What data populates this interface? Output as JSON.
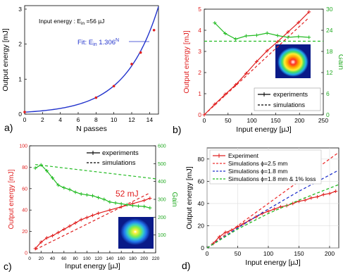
{
  "chart_data": [
    {
      "panel": "a)",
      "type": "scatter",
      "annotation": "Input energy : E",
      "annotation_sub": "in",
      "annotation_tail": " =56 µJ",
      "fit_label": "Fit: E",
      "fit_sub": "in",
      "fit_tail": " 1.306",
      "fit_sup": "N",
      "xlabel": "N passes",
      "ylabel": "Output energy [mJ]",
      "xlim": [
        0,
        15
      ],
      "ylim": [
        0,
        3.1
      ],
      "xticks": [
        0,
        2,
        4,
        6,
        8,
        10,
        12,
        14
      ],
      "yticks": [
        0,
        1,
        2,
        3
      ],
      "series": [
        {
          "values_x": [
            0,
            8,
            10,
            12,
            13,
            14.5
          ],
          "values_y": [
            0.06,
            0.47,
            0.8,
            1.43,
            1.76,
            2.4
          ],
          "color": "#e02020"
        }
      ],
      "fit_curve": {
        "type": "exponential",
        "a": 0.056,
        "b": 1.306,
        "color": "#2233cc"
      }
    },
    {
      "panel": "b)",
      "type": "line",
      "xlabel": "Input energy [µJ]",
      "ylabel": "Output energy [mJ]",
      "y2label": "Gain",
      "xlim": [
        0,
        250
      ],
      "ylim": [
        0,
        5
      ],
      "y2lim": [
        0,
        30
      ],
      "xticks": [
        0,
        50,
        100,
        150,
        200,
        250
      ],
      "yticks": [
        0,
        1,
        2,
        3,
        4,
        5
      ],
      "y2ticks": [
        0,
        6,
        12,
        18,
        24,
        30
      ],
      "legend": [
        "experiments",
        "simulations"
      ],
      "legend_position": "bottom-right",
      "series": [
        {
          "x": [
            0,
            22,
            44,
            66,
            88,
            110,
            132,
            154,
            176,
            198,
            220
          ],
          "y": [
            0,
            0.5,
            0.97,
            1.42,
            1.96,
            2.52,
            3.03,
            3.46,
            3.92,
            4.37,
            4.87
          ],
          "color": "#e02020",
          "axis": "left"
        },
        {
          "x": [
            0,
            220
          ],
          "y": [
            0,
            4.6
          ],
          "color": "#e02020",
          "dashed": true,
          "axis": "left"
        },
        {
          "x": [
            22,
            44,
            66,
            88,
            110,
            132,
            154,
            176,
            198,
            220
          ],
          "y": [
            26.1,
            23.1,
            21.5,
            22.4,
            22.6,
            23.2,
            22.5,
            22.0,
            22.2,
            22.0
          ],
          "color": "#22bb22",
          "axis": "right"
        },
        {
          "x": [
            0,
            250
          ],
          "y": [
            20.9,
            20.9
          ],
          "color": "#22bb22",
          "dashed": true,
          "axis": "right"
        }
      ]
    },
    {
      "panel": "c)",
      "type": "line",
      "xlabel": "Input energy [µJ]",
      "ylabel": "Output energy [mJ]",
      "y2label": "Gain",
      "annotation": "52 mJ",
      "xlim": [
        0,
        220
      ],
      "ylim": [
        0,
        100
      ],
      "y2lim": [
        0,
        600
      ],
      "xticks": [
        0,
        20,
        40,
        60,
        80,
        100,
        120,
        140,
        160,
        180,
        200,
        220
      ],
      "yticks": [
        0,
        20,
        40,
        60,
        80,
        100
      ],
      "y2ticks": [
        100,
        200,
        300,
        400,
        500,
        600
      ],
      "legend": [
        "experiments",
        "simulations"
      ],
      "legend_position": "top-right",
      "series": [
        {
          "x": [
            10,
            20,
            30,
            40,
            50,
            60,
            70,
            80,
            90,
            100,
            110,
            120,
            140,
            160,
            180,
            200,
            210
          ],
          "y": [
            4,
            10,
            14,
            16,
            19,
            22,
            25,
            28,
            31,
            33,
            35,
            37,
            40,
            43,
            46,
            49,
            51
          ],
          "color": "#e02020",
          "axis": "left"
        },
        {
          "x": [
            10,
            210
          ],
          "y": [
            3,
            56
          ],
          "color": "#e02020",
          "dashed": true,
          "axis": "left"
        },
        {
          "x": [
            10,
            20,
            30,
            40,
            50,
            60,
            70,
            80,
            90,
            100,
            110,
            120,
            130,
            140,
            150,
            160,
            170,
            180,
            190,
            200,
            210
          ],
          "y": [
            475,
            493,
            460,
            420,
            380,
            365,
            355,
            340,
            330,
            325,
            320,
            310,
            300,
            285,
            280,
            275,
            270,
            265,
            262,
            260,
            252
          ],
          "color": "#22bb22",
          "axis": "right"
        },
        {
          "x": [
            10,
            220
          ],
          "y": [
            495,
            415
          ],
          "color": "#22bb22",
          "dashed": true,
          "axis": "right"
        }
      ]
    },
    {
      "panel": "d)",
      "type": "line",
      "xlabel": "Input energy [µJ]",
      "ylabel": "Output energy [mJ]",
      "xlim": [
        0,
        215
      ],
      "ylim": [
        0,
        90
      ],
      "xticks": [
        0,
        50,
        100,
        150,
        200
      ],
      "yticks": [
        0,
        20,
        40,
        60,
        80
      ],
      "legend": [
        "Experiment",
        "Simulations ϕ=2.5 mm",
        "Simulations ϕ=1.8 mm",
        "Simulations ϕ=1.8 mm & 1% loss"
      ],
      "legend_position": "top-left",
      "series": [
        {
          "name": "Experiment",
          "x": [
            10,
            20,
            30,
            40,
            50,
            60,
            70,
            80,
            90,
            100,
            110,
            120,
            130,
            140,
            150,
            160,
            170,
            180,
            190,
            200,
            210
          ],
          "y": [
            4,
            10,
            14,
            16,
            19,
            22,
            25,
            28,
            31,
            33,
            35,
            37,
            38,
            40,
            42,
            43,
            45,
            46,
            48,
            49,
            51
          ],
          "color": "#e02020"
        },
        {
          "name": "Simulations ϕ=2.5 mm",
          "x": [
            0,
            50,
            100,
            150,
            215
          ],
          "y": [
            0,
            20,
            40,
            60,
            86
          ],
          "color": "#ee3333",
          "dashed": true
        },
        {
          "name": "Simulations ϕ=1.8 mm",
          "x": [
            0,
            50,
            100,
            150,
            215
          ],
          "y": [
            0,
            18,
            35,
            51,
            70
          ],
          "color": "#2233cc",
          "dashed": true
        },
        {
          "name": "Simulations ϕ=1.8 mm & 1% loss",
          "x": [
            0,
            50,
            100,
            150,
            215
          ],
          "y": [
            0,
            17,
            31,
            43,
            57
          ],
          "color": "#22bb22",
          "dashed": true
        }
      ]
    }
  ]
}
